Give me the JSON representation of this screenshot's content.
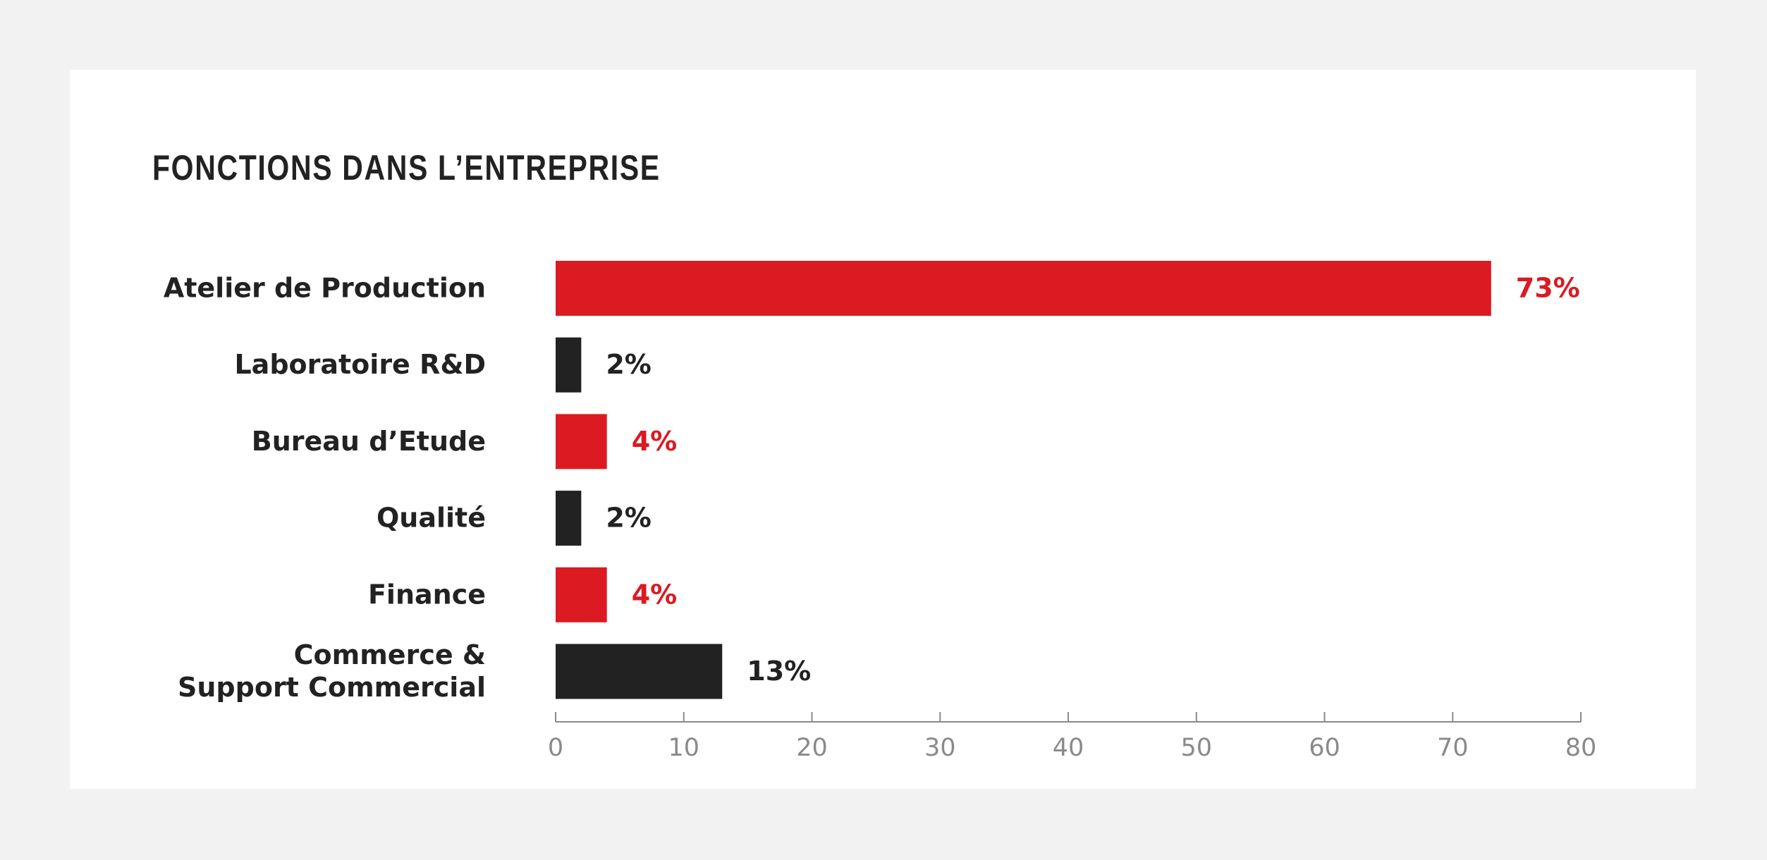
{
  "chart_data": {
    "type": "bar",
    "orientation": "horizontal",
    "title": "FONCTIONS DANS L’ENTREPRISE",
    "categories": [
      [
        "Atelier de Production"
      ],
      [
        "Laboratoire R&D"
      ],
      [
        "Bureau d’Etude"
      ],
      [
        "Qualité"
      ],
      [
        "Finance"
      ],
      [
        "Commerce &",
        "Support Commercial"
      ]
    ],
    "values": [
      73,
      2,
      4,
      2,
      4,
      13
    ],
    "value_labels": [
      "73%",
      "2%",
      "4%",
      "2%",
      "4%",
      "13%"
    ],
    "colors": [
      "#dc1a21",
      "#222222",
      "#dc1a21",
      "#222222",
      "#dc1a21",
      "#222222"
    ],
    "xlim": [
      0,
      80
    ],
    "xticks": [
      0,
      10,
      20,
      30,
      40,
      50,
      60,
      70,
      80
    ],
    "grid": false
  }
}
